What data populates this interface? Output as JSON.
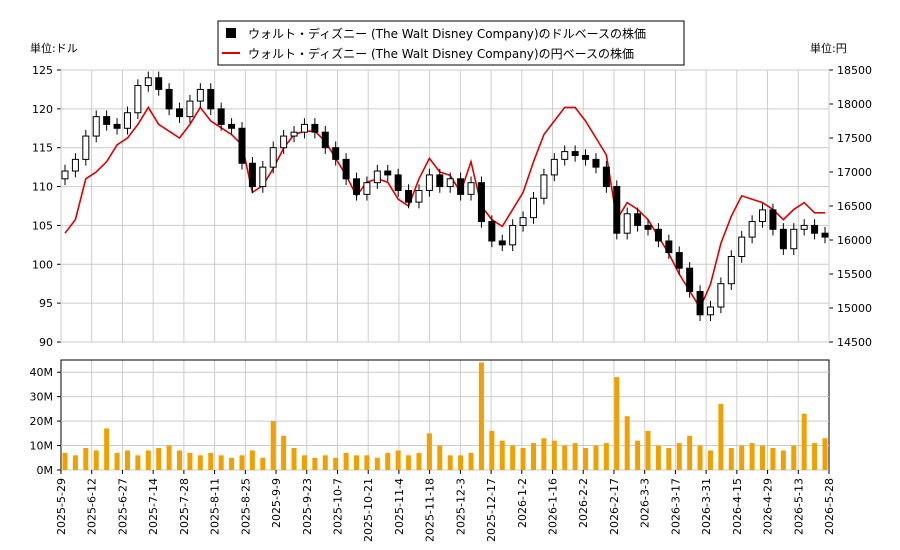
{
  "chart_data": [
    {
      "type": "candlestick",
      "title": "",
      "ylabel_left": "単位:ドル",
      "ylabel_right": "単位:円",
      "ylim_left": [
        90,
        125
      ],
      "ylim_right": [
        14500,
        18500
      ],
      "yticks_left": [
        90,
        95,
        100,
        105,
        110,
        115,
        120,
        125
      ],
      "yticks_right": [
        14500,
        15000,
        15500,
        16000,
        16500,
        17000,
        17500,
        18000,
        18500
      ],
      "grid": true,
      "legend_position": "top-center",
      "series": [
        {
          "name": "ウォルト・ディズニー (The Walt Disney Company)のドルベースの株価",
          "axis": "left",
          "style": "candlestick",
          "color": "#000000"
        },
        {
          "name": "ウォルト・ディズニー (The Walt Disney Company)の円ベースの株価",
          "axis": "right",
          "style": "line",
          "color": "#dd0000"
        }
      ],
      "usd_close": [
        112.0,
        113.5,
        116.5,
        119.0,
        118.0,
        117.5,
        119.5,
        123.0,
        124.0,
        122.5,
        120.0,
        119.0,
        121.0,
        122.5,
        120.0,
        118.0,
        117.5,
        113.0,
        110.0,
        112.5,
        115.0,
        116.5,
        117.0,
        118.0,
        117.0,
        115.0,
        113.5,
        111.0,
        109.0,
        110.5,
        112.0,
        111.5,
        109.5,
        108.0,
        109.5,
        111.5,
        110.0,
        111.0,
        109.0,
        110.5,
        105.5,
        103.0,
        102.5,
        105.0,
        106.0,
        108.5,
        111.5,
        113.5,
        114.5,
        114.0,
        113.5,
        112.5,
        110.0,
        104.0,
        106.5,
        105.0,
        104.5,
        103.0,
        101.5,
        99.5,
        96.5,
        93.5,
        94.5,
        97.5,
        101.0,
        103.5,
        105.5,
        107.0,
        104.5,
        102.0,
        104.5,
        105.0,
        104.0,
        103.5
      ],
      "jpy_close": [
        16100,
        16300,
        16900,
        17000,
        17150,
        17400,
        17500,
        17700,
        17950,
        17700,
        17600,
        17500,
        17700,
        17950,
        17750,
        17650,
        17550,
        17400,
        16700,
        16800,
        17050,
        17350,
        17550,
        17600,
        17600,
        17450,
        17200,
        16950,
        16650,
        16850,
        16900,
        16850,
        16600,
        16500,
        16900,
        17200,
        17000,
        16950,
        16700,
        17150,
        16500,
        16300,
        16200,
        16450,
        16700,
        17150,
        17550,
        17750,
        17950,
        17950,
        17750,
        17500,
        17250,
        16300,
        16550,
        16450,
        16300,
        16050,
        15800,
        15500,
        15250,
        15000,
        15350,
        15950,
        16350,
        16650,
        16600,
        16550,
        16450,
        16300,
        16450,
        16550,
        16400,
        16400
      ],
      "volume": {
        "ylim": [
          0,
          45000000
        ],
        "yticks": [
          0,
          10000000,
          20000000,
          30000000,
          40000000
        ],
        "ytick_labels": [
          "0M",
          "10M",
          "20M",
          "30M",
          "40M"
        ],
        "color": "#f0a000",
        "values_m": [
          7,
          6,
          9,
          8,
          17,
          7,
          8,
          6,
          8,
          9,
          10,
          8,
          7,
          6,
          7,
          6,
          5,
          6,
          8,
          5,
          20,
          14,
          9,
          6,
          5,
          6,
          5,
          7,
          6,
          6,
          5,
          7,
          8,
          6,
          7,
          15,
          10,
          6,
          6,
          7,
          44,
          16,
          12,
          10,
          9,
          11,
          13,
          12,
          10,
          11,
          9,
          10,
          11,
          38,
          22,
          12,
          16,
          10,
          9,
          11,
          14,
          10,
          8,
          27,
          9,
          10,
          11,
          10,
          9,
          8,
          10,
          23,
          11,
          13
        ]
      },
      "x_tick_labels": [
        "2025-5-29",
        "2025-6-12",
        "2025-6-27",
        "2025-7-14",
        "2025-7-28",
        "2025-8-11",
        "2025-8-25",
        "2025-9-9",
        "2025-9-23",
        "2025-10-7",
        "2025-10-21",
        "2025-11-4",
        "2025-11-18",
        "2025-12-3",
        "2025-12-17",
        "2026-1-2",
        "2026-1-16",
        "2026-2-2",
        "2026-2-17",
        "2026-3-3",
        "2026-3-17",
        "2026-3-31",
        "2026-4-15",
        "2026-4-29",
        "2026-5-13",
        "2026-5-28"
      ]
    }
  ]
}
